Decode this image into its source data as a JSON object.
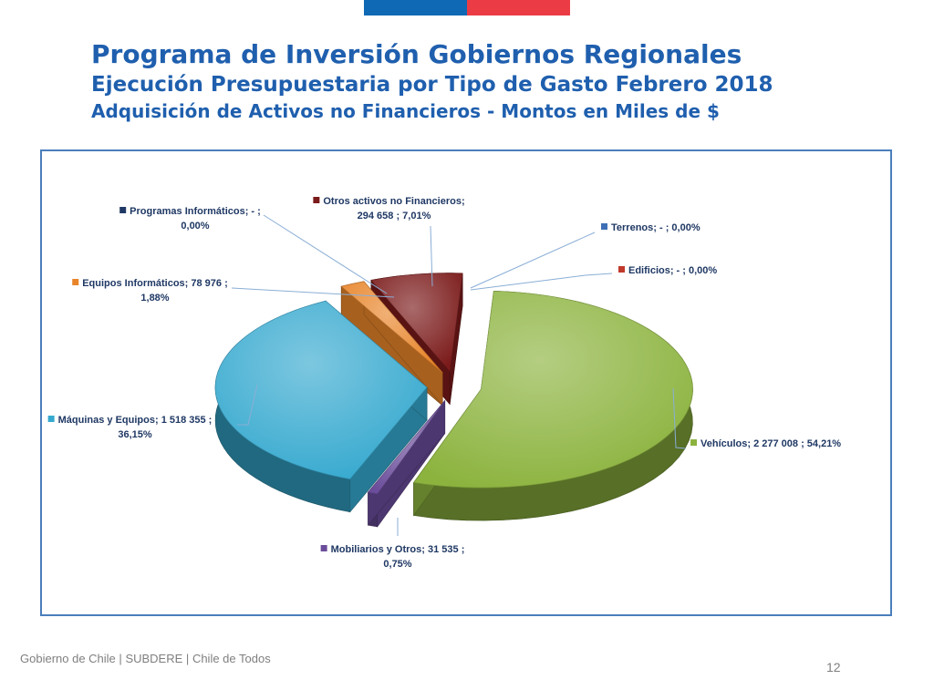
{
  "header": {
    "title": "Programa de Inversión Gobiernos Regionales",
    "subtitle": "Ejecución Presupuestaria por Tipo de Gasto Febrero 2018",
    "subtitle2": "Adquisición de Activos no Financieros - Montos en Miles de $"
  },
  "colors": {
    "flag_blue": "#0f69b4",
    "flag_red": "#eb3c46",
    "title": "#1f5fae",
    "frame": "#4a7ebb"
  },
  "chart_data": {
    "type": "pie",
    "style": "3d-exploded",
    "unit": "Miles de $",
    "slices": [
      {
        "name": "Vehículos",
        "value": 2277008,
        "value_label": "2 277 008",
        "pct_label": "54,21%",
        "color": "#8cb33e",
        "line1": "Vehículos;  2 277 008 ; 54,21%",
        "line2": ""
      },
      {
        "name": "Mobiliarios y Otros",
        "value": 31535,
        "value_label": "31 535",
        "pct_label": "0,75%",
        "color": "#6b4d9b",
        "line1": "Mobiliarios y Otros;  31 535 ;",
        "line2": "0,75%"
      },
      {
        "name": "Máquinas y Equipos",
        "value": 1518355,
        "value_label": "1 518 355",
        "pct_label": "36,15%",
        "color": "#36a9cf",
        "line1": "Máquinas y Equipos;  1 518 355 ;",
        "line2": "36,15%"
      },
      {
        "name": "Equipos Informáticos",
        "value": 78976,
        "value_label": "78 976",
        "pct_label": "1,88%",
        "color": "#e8852a",
        "line1": "Equipos Informáticos;  78 976 ;",
        "line2": "1,88%"
      },
      {
        "name": "Programas Informáticos",
        "value": 0,
        "value_label": "-",
        "pct_label": "0,00%",
        "color": "#1f3864",
        "line1": "Programas Informáticos;  -   ;",
        "line2": "0,00%"
      },
      {
        "name": "Otros activos no Financieros",
        "value": 294658,
        "value_label": "294 658",
        "pct_label": "7,01%",
        "color": "#7b1a1a",
        "line1": "Otros activos no Financieros;",
        "line2": "294 658 ; 7,01%"
      },
      {
        "name": "Terrenos",
        "value": 0,
        "value_label": "-",
        "pct_label": "0,00%",
        "color": "#3f6fb5",
        "line1": "Terrenos;  -   ; 0,00%",
        "line2": ""
      },
      {
        "name": "Edificios",
        "value": 0,
        "value_label": "-",
        "pct_label": "0,00%",
        "color": "#c0392b",
        "line1": "Edificios;  -   ; 0,00%",
        "line2": ""
      }
    ]
  },
  "footer": {
    "org1": "Gobierno de Chile",
    "sep": "|",
    "org2": "SUBDERE",
    "org3": "Chile de Todos",
    "page": "12"
  }
}
